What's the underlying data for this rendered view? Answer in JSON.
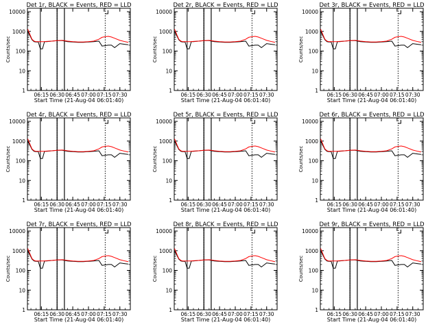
{
  "chart_data": [
    {
      "type": "line",
      "title": "Det 1r, BLACK = Events, RED = LLD",
      "xlabel": "Start Time (21-Aug-04 06:01:40)",
      "ylabel": "Counts/sec",
      "x_ticks": [
        "06:15",
        "06:30",
        "06:45",
        "07:00",
        "07:15",
        "07:30"
      ],
      "y_ticks": [
        "1",
        "10",
        "100",
        "1000",
        "10000"
      ],
      "y_scale": "log",
      "ylim": [
        1,
        15000
      ],
      "legend": "in title",
      "x": [
        "06:02",
        "06:04",
        "06:06",
        "06:08",
        "06:10",
        "06:12",
        "06:14",
        "06:16",
        "06:18",
        "06:20",
        "06:25",
        "06:30",
        "06:35",
        "06:40",
        "06:45",
        "06:50",
        "06:55",
        "07:00",
        "07:05",
        "07:10",
        "07:13",
        "07:16",
        "07:19",
        "07:22",
        "07:25",
        "07:30",
        "07:35",
        "07:38"
      ],
      "series": [
        {
          "name": "BLACK = Events",
          "values": [
            1000,
            620,
            380,
            300,
            290,
            290,
            130,
            130,
            300,
            300,
            320,
            340,
            340,
            300,
            290,
            280,
            280,
            290,
            300,
            320,
            180,
            190,
            200,
            200,
            150,
            240,
            220,
            210
          ]
        },
        {
          "name": "RED = LLD",
          "values": [
            1300,
            700,
            400,
            320,
            300,
            300,
            300,
            300,
            300,
            310,
            320,
            340,
            350,
            320,
            300,
            290,
            290,
            300,
            320,
            400,
            500,
            540,
            560,
            520,
            450,
            350,
            300,
            280
          ]
        }
      ]
    },
    {
      "type": "line",
      "title": "Det 2r, BLACK = Events, RED = LLD",
      "xlabel": "Start Time (21-Aug-04 06:01:40)",
      "ylabel": "Counts/sec",
      "x_ticks": [
        "06:15",
        "06:30",
        "06:45",
        "07:00",
        "07:15",
        "07:30"
      ],
      "y_ticks": [
        "1",
        "10",
        "100",
        "1000",
        "10000"
      ],
      "y_scale": "log",
      "ylim": [
        1,
        15000
      ],
      "legend": "in title",
      "x": [
        "06:02",
        "06:04",
        "06:06",
        "06:08",
        "06:10",
        "06:12",
        "06:14",
        "06:16",
        "06:18",
        "06:20",
        "06:25",
        "06:30",
        "06:35",
        "06:40",
        "06:45",
        "06:50",
        "06:55",
        "07:00",
        "07:05",
        "07:10",
        "07:13",
        "07:16",
        "07:19",
        "07:22",
        "07:25",
        "07:30",
        "07:35",
        "07:38"
      ],
      "series": [
        {
          "name": "BLACK = Events",
          "values": [
            1000,
            620,
            380,
            300,
            290,
            290,
            130,
            130,
            300,
            300,
            320,
            340,
            340,
            300,
            290,
            280,
            280,
            290,
            300,
            320,
            180,
            190,
            200,
            200,
            150,
            240,
            220,
            210
          ]
        },
        {
          "name": "RED = LLD",
          "values": [
            1300,
            700,
            400,
            320,
            300,
            300,
            300,
            300,
            300,
            310,
            320,
            340,
            350,
            320,
            300,
            290,
            290,
            300,
            320,
            400,
            500,
            540,
            560,
            520,
            450,
            350,
            300,
            280
          ]
        }
      ]
    },
    {
      "type": "line",
      "title": "Det 3r, BLACK = Events, RED = LLD",
      "xlabel": "Start Time (21-Aug-04 06:01:40)",
      "ylabel": "Counts/sec",
      "x_ticks": [
        "06:15",
        "06:30",
        "06:45",
        "07:00",
        "07:15",
        "07:30"
      ],
      "y_ticks": [
        "1",
        "10",
        "100",
        "1000",
        "10000"
      ],
      "y_scale": "log",
      "ylim": [
        1,
        15000
      ],
      "legend": "in title",
      "x": [
        "06:02",
        "06:04",
        "06:06",
        "06:08",
        "06:10",
        "06:12",
        "06:14",
        "06:16",
        "06:18",
        "06:20",
        "06:25",
        "06:30",
        "06:35",
        "06:40",
        "06:45",
        "06:50",
        "06:55",
        "07:00",
        "07:05",
        "07:10",
        "07:13",
        "07:16",
        "07:19",
        "07:22",
        "07:25",
        "07:30",
        "07:35",
        "07:38"
      ],
      "series": [
        {
          "name": "BLACK = Events",
          "values": [
            1000,
            620,
            380,
            300,
            290,
            290,
            130,
            130,
            300,
            300,
            320,
            340,
            340,
            300,
            290,
            280,
            280,
            290,
            300,
            320,
            180,
            190,
            200,
            200,
            150,
            240,
            220,
            210
          ]
        },
        {
          "name": "RED = LLD",
          "values": [
            1300,
            700,
            400,
            320,
            300,
            300,
            300,
            300,
            300,
            310,
            320,
            340,
            350,
            320,
            300,
            290,
            290,
            300,
            320,
            400,
            500,
            540,
            560,
            520,
            450,
            350,
            300,
            280
          ]
        }
      ]
    },
    {
      "type": "line",
      "title": "Det 4r, BLACK = Events, RED = LLD",
      "xlabel": "Start Time (21-Aug-04 06:01:40)",
      "ylabel": "Counts/sec",
      "x_ticks": [
        "06:15",
        "06:30",
        "06:45",
        "07:00",
        "07:15",
        "07:30"
      ],
      "y_ticks": [
        "1",
        "10",
        "100",
        "1000",
        "10000"
      ],
      "y_scale": "log",
      "ylim": [
        1,
        15000
      ],
      "legend": "in title",
      "x": [
        "06:02",
        "06:04",
        "06:06",
        "06:08",
        "06:10",
        "06:12",
        "06:14",
        "06:16",
        "06:18",
        "06:20",
        "06:25",
        "06:30",
        "06:35",
        "06:40",
        "06:45",
        "06:50",
        "06:55",
        "07:00",
        "07:05",
        "07:10",
        "07:13",
        "07:16",
        "07:19",
        "07:22",
        "07:25",
        "07:30",
        "07:35",
        "07:38"
      ],
      "series": [
        {
          "name": "BLACK = Events",
          "values": [
            1000,
            620,
            380,
            300,
            290,
            290,
            130,
            130,
            300,
            300,
            320,
            340,
            340,
            300,
            290,
            280,
            280,
            290,
            300,
            320,
            180,
            190,
            200,
            200,
            150,
            240,
            220,
            210
          ]
        },
        {
          "name": "RED = LLD",
          "values": [
            1300,
            700,
            400,
            320,
            300,
            300,
            300,
            300,
            300,
            310,
            320,
            340,
            350,
            320,
            300,
            290,
            290,
            300,
            320,
            400,
            500,
            540,
            560,
            520,
            450,
            350,
            300,
            280
          ]
        }
      ]
    },
    {
      "type": "line",
      "title": "Det 5r, BLACK = Events, RED = LLD",
      "xlabel": "Start Time (21-Aug-04 06:01:40)",
      "ylabel": "Counts/sec",
      "x_ticks": [
        "06:15",
        "06:30",
        "06:45",
        "07:00",
        "07:15",
        "07:30"
      ],
      "y_ticks": [
        "1",
        "10",
        "100",
        "1000",
        "10000"
      ],
      "y_scale": "log",
      "ylim": [
        1,
        15000
      ],
      "legend": "in title",
      "x": [
        "06:02",
        "06:04",
        "06:06",
        "06:08",
        "06:10",
        "06:12",
        "06:14",
        "06:16",
        "06:18",
        "06:20",
        "06:25",
        "06:30",
        "06:35",
        "06:40",
        "06:45",
        "06:50",
        "06:55",
        "07:00",
        "07:05",
        "07:10",
        "07:13",
        "07:16",
        "07:19",
        "07:22",
        "07:25",
        "07:30",
        "07:35",
        "07:38"
      ],
      "series": [
        {
          "name": "BLACK = Events",
          "values": [
            1000,
            620,
            380,
            300,
            290,
            290,
            130,
            130,
            300,
            300,
            320,
            340,
            340,
            300,
            290,
            280,
            280,
            290,
            300,
            320,
            180,
            190,
            200,
            200,
            150,
            240,
            220,
            210
          ]
        },
        {
          "name": "RED = LLD",
          "values": [
            1300,
            700,
            400,
            320,
            300,
            300,
            300,
            300,
            300,
            310,
            320,
            340,
            350,
            320,
            300,
            290,
            290,
            300,
            320,
            400,
            500,
            540,
            560,
            520,
            450,
            350,
            300,
            280
          ]
        }
      ]
    },
    {
      "type": "line",
      "title": "Det 6r, BLACK = Events, RED = LLD",
      "xlabel": "Start Time (21-Aug-04 06:01:40)",
      "ylabel": "Counts/sec",
      "x_ticks": [
        "06:15",
        "06:30",
        "06:45",
        "07:00",
        "07:15",
        "07:30"
      ],
      "y_ticks": [
        "1",
        "10",
        "100",
        "1000",
        "10000"
      ],
      "y_scale": "log",
      "ylim": [
        1,
        15000
      ],
      "legend": "in title",
      "x": [
        "06:02",
        "06:04",
        "06:06",
        "06:08",
        "06:10",
        "06:12",
        "06:14",
        "06:16",
        "06:18",
        "06:20",
        "06:25",
        "06:30",
        "06:35",
        "06:40",
        "06:45",
        "06:50",
        "06:55",
        "07:00",
        "07:05",
        "07:10",
        "07:13",
        "07:16",
        "07:19",
        "07:22",
        "07:25",
        "07:30",
        "07:35",
        "07:38"
      ],
      "series": [
        {
          "name": "BLACK = Events",
          "values": [
            1000,
            620,
            380,
            300,
            290,
            290,
            130,
            130,
            300,
            300,
            320,
            340,
            340,
            300,
            290,
            280,
            280,
            290,
            300,
            320,
            180,
            190,
            200,
            200,
            150,
            240,
            220,
            210
          ]
        },
        {
          "name": "RED = LLD",
          "values": [
            1300,
            700,
            400,
            320,
            300,
            300,
            300,
            300,
            300,
            310,
            320,
            340,
            350,
            320,
            300,
            290,
            290,
            300,
            320,
            400,
            500,
            540,
            560,
            520,
            450,
            350,
            300,
            280
          ]
        }
      ]
    },
    {
      "type": "line",
      "title": "Det 7r, BLACK = Events, RED = LLD",
      "xlabel": "Start Time (21-Aug-04 06:01:40)",
      "ylabel": "Counts/sec",
      "x_ticks": [
        "06:15",
        "06:30",
        "06:45",
        "07:00",
        "07:15",
        "07:30"
      ],
      "y_ticks": [
        "1",
        "10",
        "100",
        "1000",
        "10000"
      ],
      "y_scale": "log",
      "ylim": [
        1,
        15000
      ],
      "legend": "in title",
      "x": [
        "06:02",
        "06:04",
        "06:06",
        "06:08",
        "06:10",
        "06:12",
        "06:14",
        "06:16",
        "06:18",
        "06:20",
        "06:25",
        "06:30",
        "06:35",
        "06:40",
        "06:45",
        "06:50",
        "06:55",
        "07:00",
        "07:05",
        "07:10",
        "07:13",
        "07:16",
        "07:19",
        "07:22",
        "07:25",
        "07:30",
        "07:35",
        "07:38"
      ],
      "series": [
        {
          "name": "BLACK = Events",
          "values": [
            1000,
            620,
            380,
            300,
            290,
            290,
            130,
            130,
            300,
            300,
            320,
            340,
            340,
            300,
            290,
            280,
            280,
            290,
            300,
            320,
            180,
            190,
            200,
            200,
            150,
            240,
            220,
            210
          ]
        },
        {
          "name": "RED = LLD",
          "values": [
            1300,
            700,
            400,
            320,
            300,
            300,
            300,
            300,
            300,
            310,
            320,
            340,
            350,
            320,
            300,
            290,
            290,
            300,
            320,
            400,
            500,
            540,
            560,
            520,
            450,
            350,
            300,
            280
          ]
        }
      ]
    },
    {
      "type": "line",
      "title": "Det 8r, BLACK = Events, RED = LLD",
      "xlabel": "Start Time (21-Aug-04 06:01:40)",
      "ylabel": "Counts/sec",
      "x_ticks": [
        "06:15",
        "06:30",
        "06:45",
        "07:00",
        "07:15",
        "07:30"
      ],
      "y_ticks": [
        "1",
        "10",
        "100",
        "1000",
        "10000"
      ],
      "y_scale": "log",
      "ylim": [
        1,
        15000
      ],
      "legend": "in title",
      "x": [
        "06:02",
        "06:04",
        "06:06",
        "06:08",
        "06:10",
        "06:12",
        "06:14",
        "06:16",
        "06:18",
        "06:20",
        "06:25",
        "06:30",
        "06:35",
        "06:40",
        "06:45",
        "06:50",
        "06:55",
        "07:00",
        "07:05",
        "07:10",
        "07:13",
        "07:16",
        "07:19",
        "07:22",
        "07:25",
        "07:30",
        "07:35",
        "07:38"
      ],
      "series": [
        {
          "name": "BLACK = Events",
          "values": [
            1000,
            620,
            380,
            300,
            290,
            290,
            130,
            130,
            300,
            300,
            320,
            340,
            340,
            300,
            290,
            280,
            280,
            290,
            300,
            320,
            180,
            190,
            200,
            200,
            150,
            240,
            220,
            210
          ]
        },
        {
          "name": "RED = LLD",
          "values": [
            1300,
            700,
            400,
            320,
            300,
            300,
            300,
            300,
            300,
            310,
            320,
            340,
            350,
            320,
            300,
            290,
            290,
            300,
            320,
            400,
            500,
            540,
            560,
            520,
            450,
            350,
            300,
            280
          ]
        }
      ]
    },
    {
      "type": "line",
      "title": "Det 9r, BLACK = Events, RED = LLD",
      "xlabel": "Start Time (21-Aug-04 06:01:40)",
      "ylabel": "Counts/sec",
      "x_ticks": [
        "06:15",
        "06:30",
        "06:45",
        "07:00",
        "07:15",
        "07:30"
      ],
      "y_ticks": [
        "1",
        "10",
        "100",
        "1000",
        "10000"
      ],
      "y_scale": "log",
      "ylim": [
        1,
        15000
      ],
      "legend": "in title",
      "x": [
        "06:02",
        "06:04",
        "06:06",
        "06:08",
        "06:10",
        "06:12",
        "06:14",
        "06:16",
        "06:18",
        "06:20",
        "06:25",
        "06:30",
        "06:35",
        "06:40",
        "06:45",
        "06:50",
        "06:55",
        "07:00",
        "07:05",
        "07:10",
        "07:13",
        "07:16",
        "07:19",
        "07:22",
        "07:25",
        "07:30",
        "07:35",
        "07:38"
      ],
      "series": [
        {
          "name": "BLACK = Events",
          "values": [
            1000,
            620,
            380,
            300,
            290,
            290,
            130,
            130,
            300,
            300,
            320,
            340,
            340,
            300,
            290,
            280,
            280,
            290,
            300,
            320,
            180,
            190,
            200,
            200,
            150,
            240,
            220,
            210
          ]
        },
        {
          "name": "RED = LLD",
          "values": [
            1300,
            700,
            400,
            320,
            300,
            300,
            300,
            300,
            300,
            310,
            320,
            340,
            350,
            320,
            300,
            290,
            290,
            300,
            320,
            400,
            500,
            540,
            560,
            520,
            450,
            350,
            300,
            280
          ]
        }
      ]
    }
  ],
  "markers": {
    "note": "vertical time-marker lines drawn in every panel",
    "solid": [
      "06:14",
      "06:30",
      "06:37"
    ],
    "dotted": [
      "06:30",
      "07:16"
    ],
    "box_times": [
      "06:30",
      "06:37"
    ]
  },
  "colors": {
    "events": "#000000",
    "lld": "#ff0000",
    "axes": "#000000",
    "background": "#ffffff"
  }
}
